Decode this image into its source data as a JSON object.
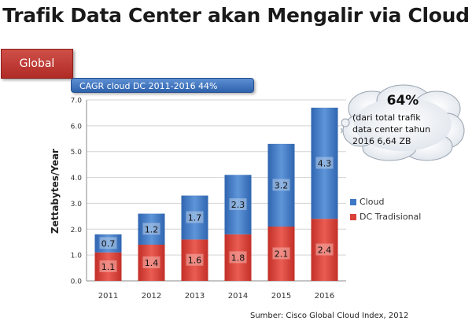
{
  "title": "Trafik Data Center akan Mengalir via Cloud",
  "region_label": "Global",
  "cagr_label": "CAGR cloud DC 2011-2016 44%",
  "callout": {
    "percent": "64%",
    "text": "(dari total trafik\ndata center tahun\n2016 6,64 ZB"
  },
  "source": "Sumber: Cisco Global Cloud Index, 2012",
  "colors": {
    "cloud": "#3f78c4",
    "dc": "#d9423a",
    "title": "#1a1a1a"
  },
  "chart_data": {
    "type": "bar",
    "stacked": true,
    "categories": [
      "2011",
      "2012",
      "2013",
      "2014",
      "2015",
      "2016"
    ],
    "series": [
      {
        "name": "DC Tradisional",
        "values": [
          1.1,
          1.4,
          1.6,
          1.8,
          2.1,
          2.4
        ],
        "labels": [
          "1.1",
          "1.4",
          "1.6",
          "1.8",
          "2.1",
          "2.4"
        ]
      },
      {
        "name": "Cloud",
        "values": [
          0.7,
          1.2,
          1.7,
          2.3,
          3.2,
          4.3
        ],
        "labels": [
          "0.7",
          "1.2",
          "1.7",
          "2.3",
          "3.2",
          "4.3"
        ]
      }
    ],
    "ylabel": "Zettabytes/Year",
    "ylim": [
      0,
      7.0
    ],
    "yticks": [
      "0.0",
      "1.0",
      "2.0",
      "3.0",
      "4.0",
      "5.0",
      "6.0",
      "7.0"
    ],
    "grid": true,
    "legend": [
      "Cloud",
      "DC Tradisional"
    ],
    "legend_position": "right"
  }
}
